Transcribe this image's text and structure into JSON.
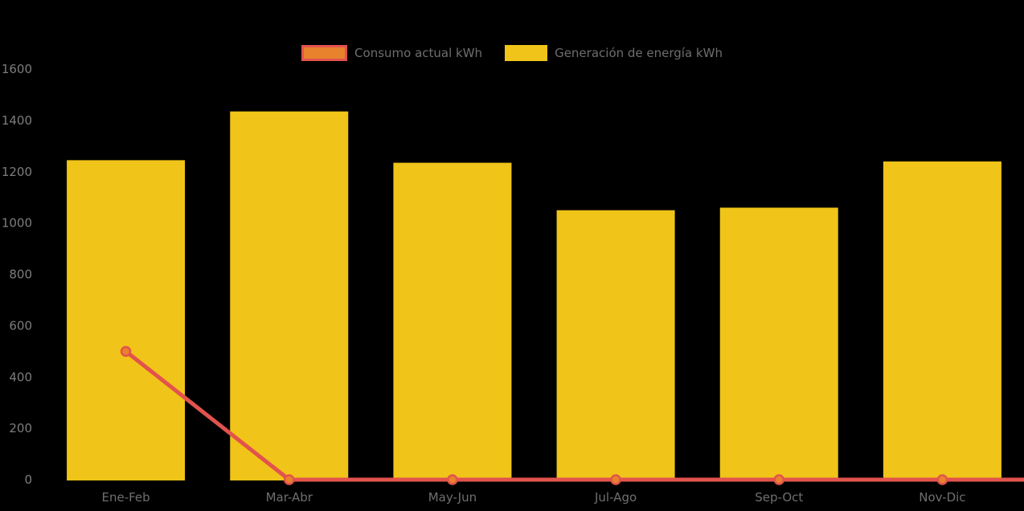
{
  "chart_data": {
    "type": "bar",
    "title": "",
    "xlabel": "",
    "ylabel": "",
    "categories": [
      "Ene-Feb",
      "Mar-Abr",
      "May-Jun",
      "Jul-Ago",
      "Sep-Oct",
      "Nov-Dic"
    ],
    "series": [
      {
        "name": "Consumo actual kWh",
        "type": "line",
        "color": "#E2534D",
        "marker_fill": "#E8822D",
        "values": [
          500,
          0,
          0,
          0,
          0,
          0
        ]
      },
      {
        "name": "Generación de energía kWh",
        "type": "bar",
        "color": "#F0C418",
        "values": [
          1245,
          1435,
          1235,
          1050,
          1060,
          1240
        ]
      }
    ],
    "ylim": [
      0,
      1600
    ],
    "ytick_interval": 200,
    "yticks": [
      0,
      200,
      400,
      600,
      800,
      1000,
      1200,
      1400,
      1600
    ],
    "grid": false,
    "legend_position": "top-center",
    "background": "#000000",
    "line_extends_to_right_edge": true
  }
}
